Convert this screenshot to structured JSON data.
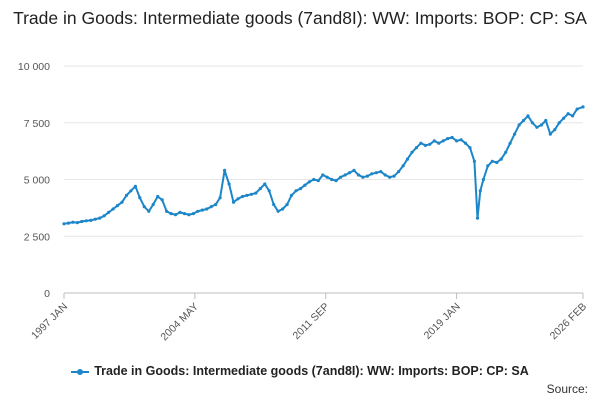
{
  "chart_data": {
    "type": "line",
    "title": "Trade in Goods: Intermediate goods (7and8I): WW: Imports: BOP: CP: SA",
    "xlabel": "",
    "ylabel": "",
    "ylim": [
      0,
      10000
    ],
    "yticks": [
      "0",
      "2 500",
      "5 000",
      "7 500",
      "10 000"
    ],
    "ytick_values": [
      0,
      2500,
      5000,
      7500,
      10000
    ],
    "xticks": [
      "1997 JAN",
      "2004 MAY",
      "2011 SEP",
      "2019 JAN",
      "2026 FEB"
    ],
    "xtick_values": [
      1997.0,
      2004.333,
      2011.667,
      2019.0,
      2026.083
    ],
    "xlim": [
      1997.0,
      2026.083
    ],
    "grid": true,
    "legend": "bottom",
    "series": [
      {
        "name": "Trade in Goods: Intermediate goods (7and8I): WW: Imports: BOP: CP: SA",
        "color": "#1d86c8",
        "x": [
          1997.0,
          1997.25,
          1997.5,
          1997.75,
          1998.0,
          1998.25,
          1998.5,
          1998.75,
          1999.0,
          1999.25,
          1999.5,
          1999.75,
          2000.0,
          2000.25,
          2000.5,
          2000.75,
          2001.0,
          2001.25,
          2001.5,
          2001.75,
          2002.0,
          2002.25,
          2002.5,
          2002.75,
          2003.0,
          2003.25,
          2003.5,
          2003.75,
          2004.0,
          2004.25,
          2004.5,
          2004.75,
          2005.0,
          2005.25,
          2005.5,
          2005.75,
          2006.0,
          2006.25,
          2006.5,
          2006.75,
          2007.0,
          2007.25,
          2007.5,
          2007.75,
          2008.0,
          2008.25,
          2008.5,
          2008.75,
          2009.0,
          2009.25,
          2009.5,
          2009.75,
          2010.0,
          2010.25,
          2010.5,
          2010.75,
          2011.0,
          2011.25,
          2011.5,
          2011.75,
          2012.0,
          2012.25,
          2012.5,
          2012.75,
          2013.0,
          2013.25,
          2013.5,
          2013.75,
          2014.0,
          2014.25,
          2014.5,
          2014.75,
          2015.0,
          2015.25,
          2015.5,
          2015.75,
          2016.0,
          2016.25,
          2016.5,
          2016.75,
          2017.0,
          2017.25,
          2017.5,
          2017.75,
          2018.0,
          2018.25,
          2018.5,
          2018.75,
          2019.0,
          2019.25,
          2019.5,
          2019.75,
          2020.0,
          2020.17,
          2020.33,
          2020.5,
          2020.75,
          2021.0,
          2021.25,
          2021.5,
          2021.75,
          2022.0,
          2022.25,
          2022.5,
          2022.75,
          2023.0,
          2023.25,
          2023.5,
          2023.75,
          2024.0,
          2024.25,
          2024.5,
          2024.75,
          2025.0,
          2025.25,
          2025.5,
          2025.75,
          2026.083
        ],
        "values": [
          3050,
          3080,
          3120,
          3100,
          3150,
          3180,
          3200,
          3250,
          3300,
          3400,
          3550,
          3700,
          3850,
          4000,
          4300,
          4500,
          4700,
          4200,
          3800,
          3600,
          3900,
          4250,
          4100,
          3600,
          3500,
          3450,
          3550,
          3500,
          3450,
          3500,
          3600,
          3650,
          3700,
          3800,
          3900,
          4200,
          5400,
          4800,
          4000,
          4150,
          4250,
          4300,
          4350,
          4400,
          4600,
          4800,
          4500,
          3900,
          3600,
          3700,
          3900,
          4300,
          4500,
          4600,
          4750,
          4900,
          5000,
          4950,
          5200,
          5100,
          5000,
          4950,
          5100,
          5200,
          5300,
          5400,
          5200,
          5100,
          5150,
          5250,
          5300,
          5350,
          5200,
          5100,
          5150,
          5350,
          5600,
          5900,
          6200,
          6400,
          6600,
          6500,
          6550,
          6700,
          6600,
          6700,
          6800,
          6850,
          6700,
          6750,
          6600,
          6400,
          5800,
          3300,
          4500,
          5000,
          5600,
          5800,
          5750,
          5900,
          6200,
          6600,
          7000,
          7400,
          7600,
          7800,
          7500,
          7300,
          7400,
          7600,
          7000,
          7200,
          7500,
          7700,
          7900,
          7800,
          8100,
          8200
        ]
      }
    ]
  },
  "source_label": "Source:"
}
